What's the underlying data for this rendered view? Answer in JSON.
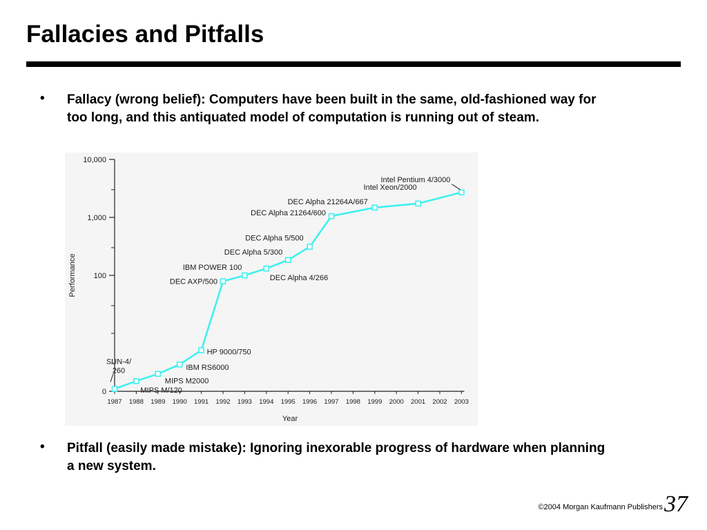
{
  "slide": {
    "title": "Fallacies and Pitfalls",
    "bullet_symbol": "•",
    "bullets": [
      "Fallacy (wrong belief): Computers have been built in the same, old-fashioned way for too long, and this antiquated model of computation is running out of steam.",
      "Pitfall (easily made mistake): Ignoring inexorable progress of hardware when planning a new system."
    ],
    "footer": "©2004 Morgan Kaufmann Publishers",
    "page_number": "37"
  },
  "colors": {
    "series": "#3ff0f0",
    "axis": "#222222",
    "chart_background": "#f5f5f5"
  },
  "chart_data": {
    "type": "line",
    "title": "",
    "xlabel": "Year",
    "ylabel": "Performance",
    "y_scale": "log",
    "ylim": [
      1,
      10000
    ],
    "y_ticks": [
      {
        "value": 1,
        "label": "0"
      },
      {
        "value": 100,
        "label": "100"
      },
      {
        "value": 1000,
        "label": "1,000"
      },
      {
        "value": 10000,
        "label": "10,000"
      }
    ],
    "y_minor_ticks": [
      3,
      10,
      30,
      300,
      3000
    ],
    "x_categories": [
      "1987",
      "1988",
      "1989",
      "1990",
      "1991",
      "1992",
      "1993",
      "1994",
      "1995",
      "1996",
      "1997",
      "1998",
      "1999",
      "2000",
      "2001",
      "2002",
      "2003"
    ],
    "grid": false,
    "legend": "none",
    "series": [
      {
        "points": [
          {
            "x": "1987",
            "y": 1.1,
            "label": "SUN-4/ 260"
          },
          {
            "x": "1988",
            "y": 1.5,
            "label": "MIPS M/120"
          },
          {
            "x": "1989",
            "y": 2.0,
            "label": "MIPS M2000"
          },
          {
            "x": "1990",
            "y": 2.9,
            "label": "IBM RS6000"
          },
          {
            "x": "1991",
            "y": 5.1,
            "label": "HP 9000/750"
          },
          {
            "x": "1992",
            "y": 79,
            "label": "DEC AXP/500"
          },
          {
            "x": "1993",
            "y": 100,
            "label": "IBM POWER 100"
          },
          {
            "x": "1994",
            "y": 131,
            "label": "DEC Alpha 4/266"
          },
          {
            "x": "1995",
            "y": 184,
            "label": "DEC Alpha 5/300"
          },
          {
            "x": "1996",
            "y": 311,
            "label": "DEC Alpha 5/500"
          },
          {
            "x": "1997",
            "y": 1052,
            "label": "DEC Alpha 21264/600"
          },
          {
            "x": "1999",
            "y": 1475,
            "label": "DEC Alpha 21264A/667"
          },
          {
            "x": "2001",
            "y": 1734,
            "label": "Intel Xeon/2000"
          },
          {
            "x": "2003",
            "y": 2697,
            "label": "Intel Pentium 4/3000"
          }
        ]
      }
    ]
  }
}
